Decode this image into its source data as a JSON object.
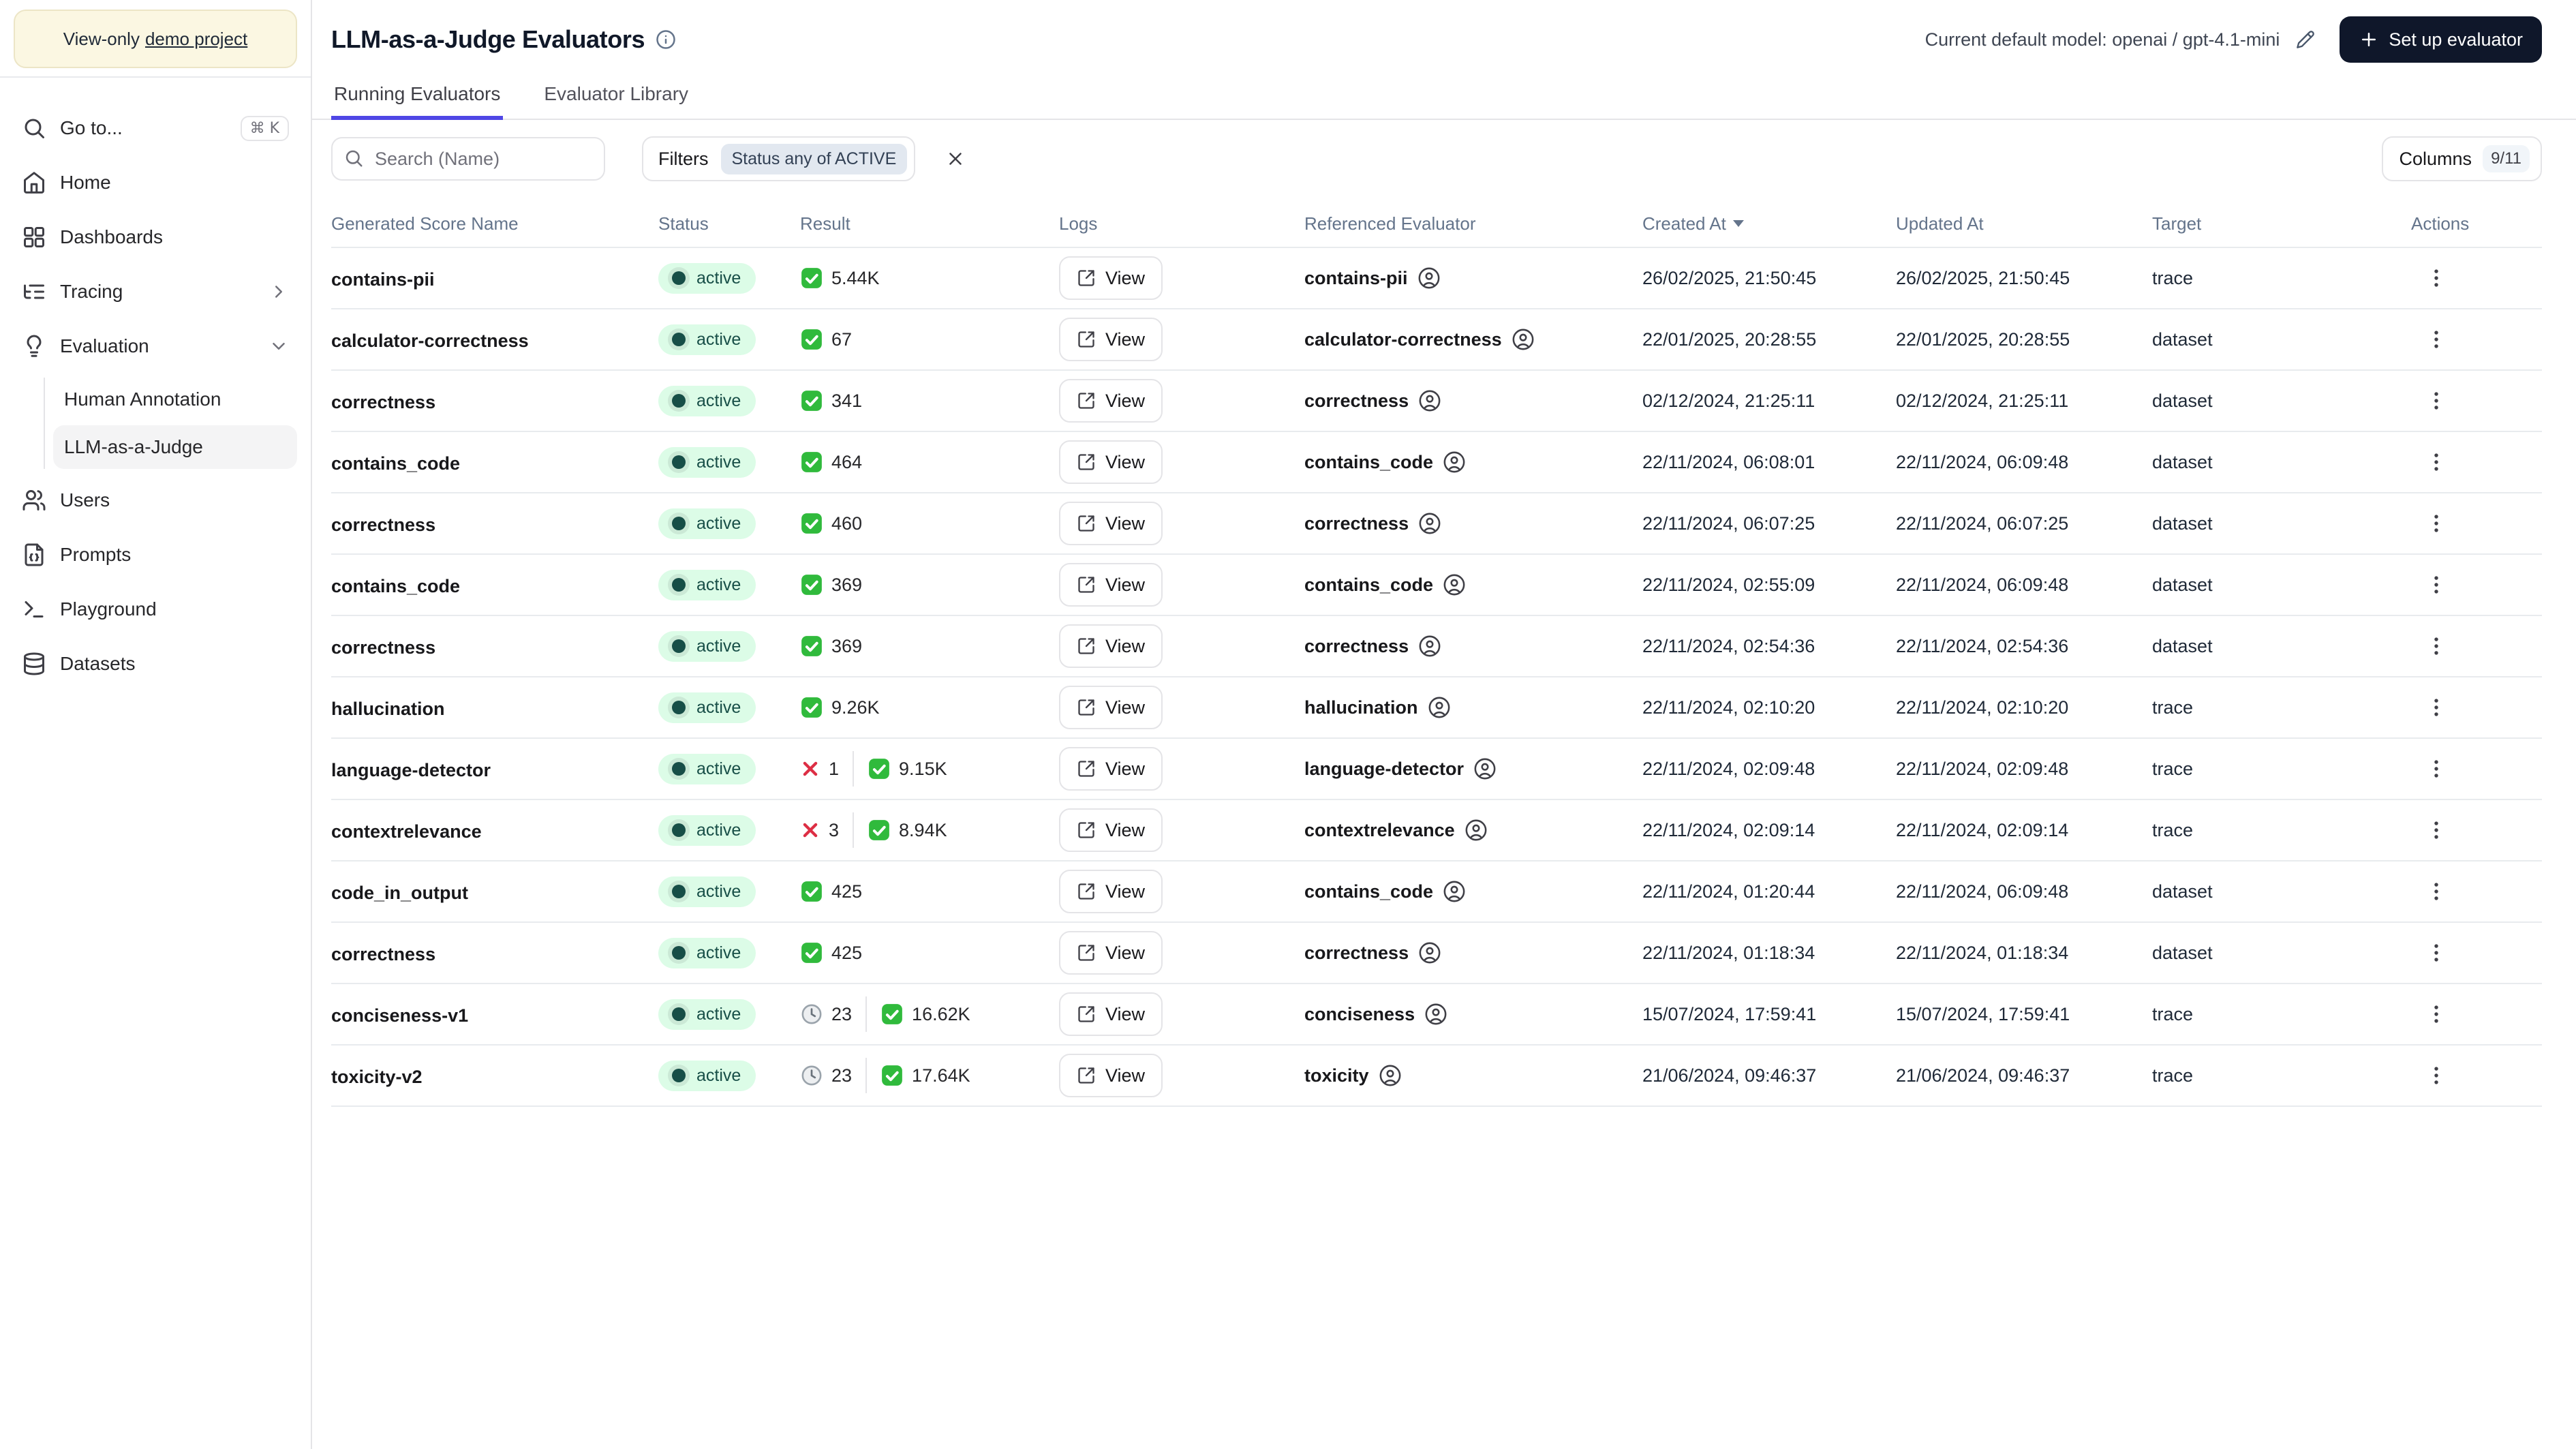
{
  "banner": {
    "prefix": "View-only",
    "link": "demo project"
  },
  "sidebar": {
    "goto_label": "Go to...",
    "goto_shortcut": "⌘ K",
    "items": [
      {
        "label": "Home"
      },
      {
        "label": "Dashboards"
      },
      {
        "label": "Tracing"
      },
      {
        "label": "Evaluation"
      },
      {
        "label": "Users"
      },
      {
        "label": "Prompts"
      },
      {
        "label": "Playground"
      },
      {
        "label": "Datasets"
      }
    ],
    "evaluation_children": [
      {
        "label": "Human Annotation",
        "selected": false
      },
      {
        "label": "LLM-as-a-Judge",
        "selected": true
      }
    ]
  },
  "header": {
    "title": "LLM-as-a-Judge Evaluators",
    "model_label": "Current default model: openai / gpt-4.1-mini",
    "setup_label": "Set up evaluator"
  },
  "tabs": [
    {
      "label": "Running Evaluators",
      "active": true
    },
    {
      "label": "Evaluator Library",
      "active": false
    }
  ],
  "toolbar": {
    "search_placeholder": "Search (Name)",
    "filters_label": "Filters",
    "filter_badge": "Status any of ACTIVE",
    "columns_label": "Columns",
    "columns_badge": "9/11"
  },
  "table": {
    "columns": [
      "Generated Score Name",
      "Status",
      "Result",
      "Logs",
      "Referenced Evaluator",
      "Created At",
      "Updated At",
      "Target",
      "Actions"
    ],
    "sort_column": "Created At",
    "sort_direction": "desc",
    "view_label": "View",
    "status_colors": {
      "active_bg": "#dcfce7",
      "active_text": "#174e47"
    },
    "accent_color": "#4f46e5",
    "rows": [
      {
        "name": "contains-pii",
        "status": "active",
        "result": [
          {
            "kind": "pass",
            "count": "5.44K"
          }
        ],
        "evaluator": "contains-pii",
        "created": "26/02/2025, 21:50:45",
        "updated": "26/02/2025, 21:50:45",
        "target": "trace"
      },
      {
        "name": "calculator-correctness",
        "status": "active",
        "result": [
          {
            "kind": "pass",
            "count": "67"
          }
        ],
        "evaluator": "calculator-correctness",
        "created": "22/01/2025, 20:28:55",
        "updated": "22/01/2025, 20:28:55",
        "target": "dataset"
      },
      {
        "name": "correctness",
        "status": "active",
        "result": [
          {
            "kind": "pass",
            "count": "341"
          }
        ],
        "evaluator": "correctness",
        "created": "02/12/2024, 21:25:11",
        "updated": "02/12/2024, 21:25:11",
        "target": "dataset"
      },
      {
        "name": "contains_code",
        "status": "active",
        "result": [
          {
            "kind": "pass",
            "count": "464"
          }
        ],
        "evaluator": "contains_code",
        "created": "22/11/2024, 06:08:01",
        "updated": "22/11/2024, 06:09:48",
        "target": "dataset"
      },
      {
        "name": "correctness",
        "status": "active",
        "result": [
          {
            "kind": "pass",
            "count": "460"
          }
        ],
        "evaluator": "correctness",
        "created": "22/11/2024, 06:07:25",
        "updated": "22/11/2024, 06:07:25",
        "target": "dataset"
      },
      {
        "name": "contains_code",
        "status": "active",
        "result": [
          {
            "kind": "pass",
            "count": "369"
          }
        ],
        "evaluator": "contains_code",
        "created": "22/11/2024, 02:55:09",
        "updated": "22/11/2024, 06:09:48",
        "target": "dataset"
      },
      {
        "name": "correctness",
        "status": "active",
        "result": [
          {
            "kind": "pass",
            "count": "369"
          }
        ],
        "evaluator": "correctness",
        "created": "22/11/2024, 02:54:36",
        "updated": "22/11/2024, 02:54:36",
        "target": "dataset"
      },
      {
        "name": "hallucination",
        "status": "active",
        "result": [
          {
            "kind": "pass",
            "count": "9.26K"
          }
        ],
        "evaluator": "hallucination",
        "created": "22/11/2024, 02:10:20",
        "updated": "22/11/2024, 02:10:20",
        "target": "trace"
      },
      {
        "name": "language-detector",
        "status": "active",
        "result": [
          {
            "kind": "fail",
            "count": "1"
          },
          {
            "kind": "pass",
            "count": "9.15K"
          }
        ],
        "evaluator": "language-detector",
        "created": "22/11/2024, 02:09:48",
        "updated": "22/11/2024, 02:09:48",
        "target": "trace"
      },
      {
        "name": "contextrelevance",
        "status": "active",
        "result": [
          {
            "kind": "fail",
            "count": "3"
          },
          {
            "kind": "pass",
            "count": "8.94K"
          }
        ],
        "evaluator": "contextrelevance",
        "created": "22/11/2024, 02:09:14",
        "updated": "22/11/2024, 02:09:14",
        "target": "trace"
      },
      {
        "name": "code_in_output",
        "status": "active",
        "result": [
          {
            "kind": "pass",
            "count": "425"
          }
        ],
        "evaluator": "contains_code",
        "created": "22/11/2024, 01:20:44",
        "updated": "22/11/2024, 06:09:48",
        "target": "dataset"
      },
      {
        "name": "correctness",
        "status": "active",
        "result": [
          {
            "kind": "pass",
            "count": "425"
          }
        ],
        "evaluator": "correctness",
        "created": "22/11/2024, 01:18:34",
        "updated": "22/11/2024, 01:18:34",
        "target": "dataset"
      },
      {
        "name": "conciseness-v1",
        "status": "active",
        "result": [
          {
            "kind": "pending",
            "count": "23"
          },
          {
            "kind": "pass",
            "count": "16.62K"
          }
        ],
        "evaluator": "conciseness",
        "created": "15/07/2024, 17:59:41",
        "updated": "15/07/2024, 17:59:41",
        "target": "trace"
      },
      {
        "name": "toxicity-v2",
        "status": "active",
        "result": [
          {
            "kind": "pending",
            "count": "23"
          },
          {
            "kind": "pass",
            "count": "17.64K"
          }
        ],
        "evaluator": "toxicity",
        "created": "21/06/2024, 09:46:37",
        "updated": "21/06/2024, 09:46:37",
        "target": "trace"
      }
    ]
  }
}
